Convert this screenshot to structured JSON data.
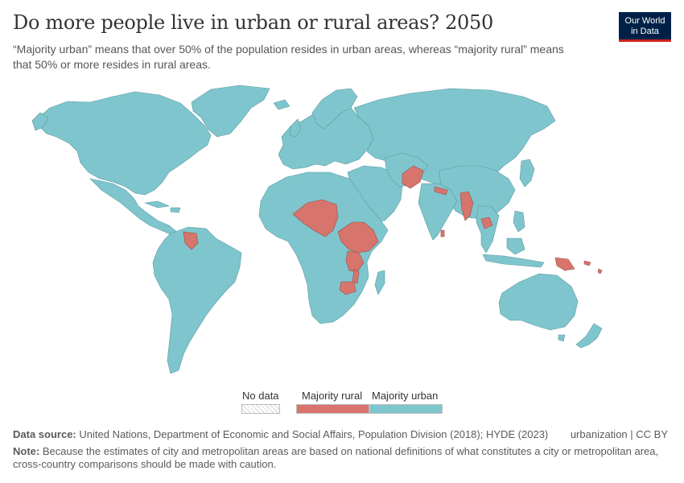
{
  "header": {
    "title": "Do more people live in urban or rural areas? 2050",
    "subtitle": "“Majority urban” means that over 50% of the population resides in urban areas, whereas “majority rural” means that 50% or more resides in rural areas."
  },
  "logo": {
    "line1": "Our World",
    "line2": "in Data"
  },
  "legend": {
    "no_data": "No data",
    "rural": "Majority rural",
    "urban": "Majority urban"
  },
  "colors": {
    "urban": "#7fc5cd",
    "rural": "#d7746c",
    "border": "#5a9aa2",
    "no_data": "#ffffff"
  },
  "footer": {
    "source_label": "Data source:",
    "source_text": "United Nations, Department of Economic and Social Affairs, Population Division (2018); HYDE (2023)",
    "tag": "urbanization | CC BY",
    "note_label": "Note:",
    "note_text": "Because the estimates of city and metropolitan areas are based on national definitions of what constitutes a city or metropolitan area, cross-country comparisons should be made with caution."
  }
}
